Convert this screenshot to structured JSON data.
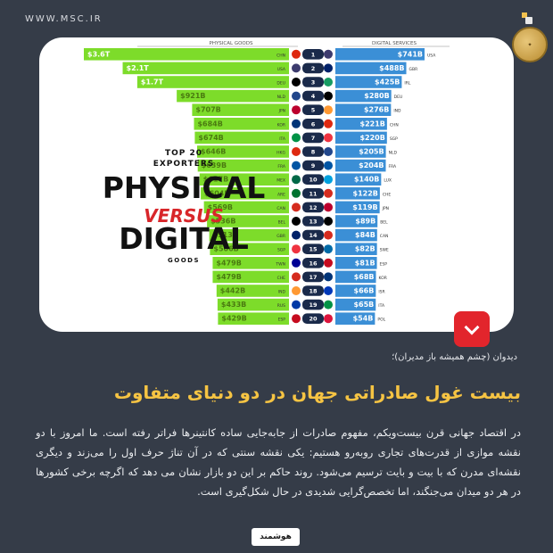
{
  "site": "WWW.MSC.IR",
  "chart_data": {
    "type": "bar",
    "title_top": "TOP 20",
    "title_exporters": "EXPORTERS",
    "title_physical": "PHYSICAL",
    "title_versus": "VERSUS",
    "title_digital": "DIGITAL",
    "title_goods": "GOODS",
    "left_header": "PHYSICAL GOODS",
    "right_header": "DIGITAL SERVICES",
    "physical": [
      {
        "rank": "1",
        "label": "$3.6T",
        "country": "CHN",
        "value": 3600
      },
      {
        "rank": "2",
        "label": "$2.1T",
        "country": "USA",
        "value": 2100
      },
      {
        "rank": "3",
        "label": "$1.7T",
        "country": "DEU",
        "value": 1700
      },
      {
        "rank": "4",
        "label": "$921B",
        "country": "NLD",
        "value": 921
      },
      {
        "rank": "5",
        "label": "$707B",
        "country": "JPN",
        "value": 707
      },
      {
        "rank": "6",
        "label": "$684B",
        "country": "KOR",
        "value": 684
      },
      {
        "rank": "7",
        "label": "$674B",
        "country": "ITA",
        "value": 674
      },
      {
        "rank": "8",
        "label": "$646B",
        "country": "HKG",
        "value": 646
      },
      {
        "rank": "9",
        "label": "$639B",
        "country": "FRA",
        "value": 639
      },
      {
        "rank": "10",
        "label": "$617B",
        "country": "MEX",
        "value": 617
      },
      {
        "rank": "11",
        "label": "$604B",
        "country": "ARE",
        "value": 604
      },
      {
        "rank": "12",
        "label": "$569B",
        "country": "CAN",
        "value": 569
      },
      {
        "rank": "13",
        "label": "$536B",
        "country": "BEL",
        "value": 536
      },
      {
        "rank": "14",
        "label": "$513B",
        "country": "GBR",
        "value": 513
      },
      {
        "rank": "15",
        "label": "$506B",
        "country": "SGP",
        "value": 506
      },
      {
        "rank": "16",
        "label": "$479B",
        "country": "TWN",
        "value": 479
      },
      {
        "rank": "17",
        "label": "$479B",
        "country": "CHE",
        "value": 479
      },
      {
        "rank": "18",
        "label": "$442B",
        "country": "IND",
        "value": 442
      },
      {
        "rank": "19",
        "label": "$433B",
        "country": "RUS",
        "value": 433
      },
      {
        "rank": "20",
        "label": "$429B",
        "country": "ESP",
        "value": 429
      }
    ],
    "digital": [
      {
        "label": "$741B",
        "country": "USA",
        "value": 741
      },
      {
        "label": "$488B",
        "country": "GBR",
        "value": 488
      },
      {
        "label": "$425B",
        "country": "IRL",
        "value": 425
      },
      {
        "label": "$280B",
        "country": "DEU",
        "value": 280
      },
      {
        "label": "$276B",
        "country": "IND",
        "value": 276
      },
      {
        "label": "$221B",
        "country": "CHN",
        "value": 221
      },
      {
        "label": "$220B",
        "country": "SGP",
        "value": 220
      },
      {
        "label": "$205B",
        "country": "NLD",
        "value": 205
      },
      {
        "label": "$204B",
        "country": "FRA",
        "value": 204
      },
      {
        "label": "$140B",
        "country": "LUX",
        "value": 140
      },
      {
        "label": "$122B",
        "country": "CHE",
        "value": 122
      },
      {
        "label": "$119B",
        "country": "JPN",
        "value": 119
      },
      {
        "label": "$89B",
        "country": "BEL",
        "value": 89
      },
      {
        "label": "$84B",
        "country": "CAN",
        "value": 84
      },
      {
        "label": "$82B",
        "country": "SWE",
        "value": 82
      },
      {
        "label": "$81B",
        "country": "ESP",
        "value": 81
      },
      {
        "label": "$68B",
        "country": "KOR",
        "value": 68
      },
      {
        "label": "$66B",
        "country": "ISR",
        "value": 66
      },
      {
        "label": "$65B",
        "country": "ITA",
        "value": 65
      },
      {
        "label": "$54B",
        "country": "POL",
        "value": 54
      }
    ],
    "colors": {
      "physical": "#7ddc2a",
      "digital": "#3b8fd6",
      "number_bg": "#1a2a4a"
    }
  },
  "caption": "دیدوان (چشم همیشه باز مدیران)؛",
  "headline": "بیست غول صادراتی جهان در دو دنیای متفاوت",
  "body": "در اقتصاد جهانی قرن بیست‌ویکم، مفهوم صادرات از جابه‌جایی ساده کانتینرها فراتر رفته است. ما امروز با دو نقشه موازی از قدرت‌های تجاری روبه‌رو هستیم: یکی نقشه سنتی که در آن تناژ حرف اول را می‌زند و دیگری نقشه‌ای مدرن که با بیت و بایت ترسیم می‌شود. روند حاکم بر این دو بازار نشان می دهد که اگرچه برخی کشورها در هر دو میدان می‌جنگند، اما تخصص‌گرایی شدیدی در حال شکل‌گیری است.",
  "logo_text": "هوشمند"
}
